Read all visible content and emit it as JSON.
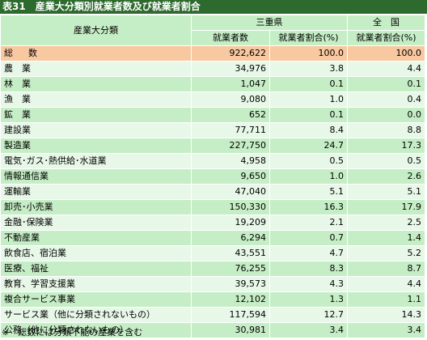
{
  "title": "表31　産業大分類別就業者数及び就業者割合",
  "header": {
    "category": "産業大分類",
    "pref": "三重県",
    "national": "全　国",
    "workers": "就業者数",
    "ratio_pref": "就業者割合(%)",
    "ratio_nat": "就業者割合(%)"
  },
  "total": {
    "name": "総　数",
    "workers": "922,622",
    "ratio": "100.0",
    "national": "100.0"
  },
  "rows": [
    {
      "name": "農　業",
      "workers": "34,976",
      "ratio": "3.8",
      "national": "4.4"
    },
    {
      "name": "林　業",
      "workers": "1,047",
      "ratio": "0.1",
      "national": "0.1"
    },
    {
      "name": "漁　業",
      "workers": "9,080",
      "ratio": "1.0",
      "national": "0.4"
    },
    {
      "name": "鉱　業",
      "workers": "652",
      "ratio": "0.1",
      "national": "0.0"
    },
    {
      "name": "建設業",
      "workers": "77,711",
      "ratio": "8.4",
      "national": "8.8"
    },
    {
      "name": "製造業",
      "workers": "227,750",
      "ratio": "24.7",
      "national": "17.3"
    },
    {
      "name": "電気･ガス･熱供給･水道業",
      "workers": "4,958",
      "ratio": "0.5",
      "national": "0.5"
    },
    {
      "name": "情報通信業",
      "workers": "9,650",
      "ratio": "1.0",
      "national": "2.6"
    },
    {
      "name": "運輸業",
      "workers": "47,040",
      "ratio": "5.1",
      "national": "5.1"
    },
    {
      "name": "卸売･小売業",
      "workers": "150,330",
      "ratio": "16.3",
      "national": "17.9"
    },
    {
      "name": "金融･保険業",
      "workers": "19,209",
      "ratio": "2.1",
      "national": "2.5"
    },
    {
      "name": "不動産業",
      "workers": "6,294",
      "ratio": "0.7",
      "national": "1.4"
    },
    {
      "name": "飲食店、宿泊業",
      "workers": "43,551",
      "ratio": "4.7",
      "national": "5.2"
    },
    {
      "name": "医療、福祉",
      "workers": "76,255",
      "ratio": "8.3",
      "national": "8.7"
    },
    {
      "name": "教育、学習支援業",
      "workers": "39,573",
      "ratio": "4.3",
      "national": "4.4"
    },
    {
      "name": "複合サービス事業",
      "workers": "12,102",
      "ratio": "1.3",
      "national": "1.1"
    },
    {
      "name": "サービス業（他に分類されないもの）",
      "workers": "117,594",
      "ratio": "12.7",
      "national": "14.3"
    },
    {
      "name": "公務（他に分類されないもの）",
      "workers": "30,981",
      "ratio": "3.4",
      "national": "3.4"
    }
  ],
  "note": "※　総数には分類不能の産業を含む"
}
